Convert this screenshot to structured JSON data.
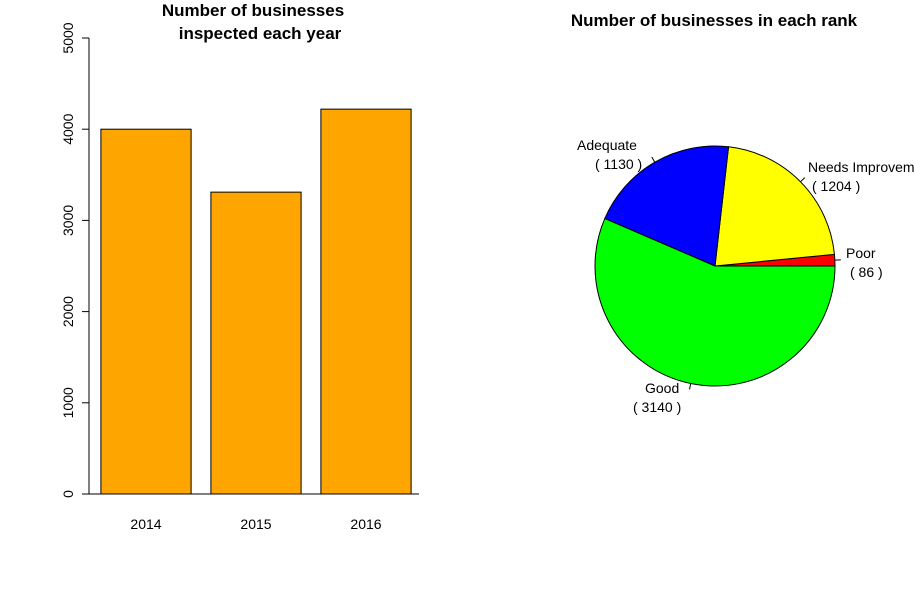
{
  "chart_data": [
    {
      "type": "bar",
      "title_lines": [
        "Number of businesses",
        "inspected each year"
      ],
      "categories": [
        "2014",
        "2015",
        "2016"
      ],
      "values": [
        4000,
        3310,
        4220
      ],
      "ylim": [
        0,
        5000
      ],
      "yticks": [
        "0",
        "1000",
        "2000",
        "3000",
        "4000",
        "5000"
      ],
      "xlabel": "",
      "ylabel": "",
      "grid": false,
      "bar_color": "#FFA500"
    },
    {
      "type": "pie",
      "title": "Number of businesses in each rank",
      "slices": [
        {
          "name": "Poor",
          "count_label": "( 86 )",
          "value": 86,
          "color": "#FF0000"
        },
        {
          "name": "Needs Improvement",
          "count_label": "( 1204 )",
          "value": 1204,
          "color": "#FFFF00"
        },
        {
          "name": "Adequate",
          "count_label": "( 1130 )",
          "value": 1130,
          "color": "#0000FF"
        },
        {
          "name": "Good",
          "count_label": "( 3140 )",
          "value": 3140,
          "color": "#00FF00"
        }
      ]
    }
  ]
}
